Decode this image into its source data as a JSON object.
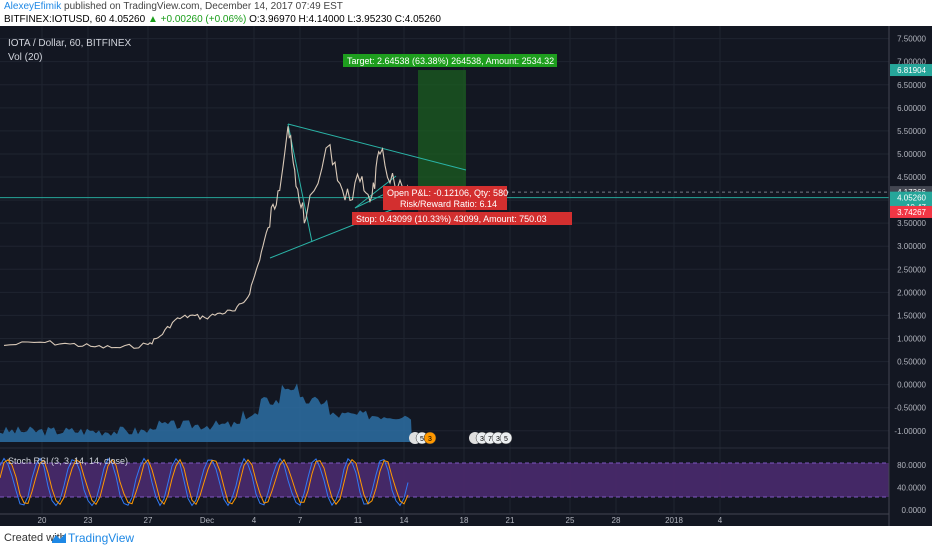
{
  "header": {
    "author": "AlexeyEfimik",
    "published": "published on TradingView.com, December 14, 2017 07:49 EST",
    "symbol": "BITFINEX:IOTUSD, 60",
    "last": "4.05260",
    "change": "+0.00260 (+0.06%)",
    "ohlc": "O:3.96970 H:4.14000 L:3.95230 C:4.05260"
  },
  "legend": {
    "title": "IOTA / Dollar, 60, BITFINEX",
    "volume": "Vol (20)",
    "stoch": "Stoch RSI (3, 3, 14, 14, close)"
  },
  "annotations": {
    "target": "Target: 2.64538 (63.38%) 264538, Amount: 2534.32",
    "open_pl": "Open P&L: -0.12106, Qty: 580",
    "risk_reward": "Risk/Reward Ratio: 6.14",
    "stop": "Stop: 0.43099 (10.33%) 43099, Amount: 750.03"
  },
  "price_tags": [
    {
      "label": "6.81904",
      "value": 6.81904,
      "color": "#26a69a"
    },
    {
      "label": "4.17366",
      "value": 4.17366,
      "color": "#434651"
    },
    {
      "label": "4.05260",
      "value": 4.0526,
      "color": "#26a69a"
    },
    {
      "label": "10.47",
      "value": 3.85,
      "color": "#26a69a"
    },
    {
      "label": "3.74267",
      "value": 3.74267,
      "color": "#f23645"
    }
  ],
  "event_badges": {
    "group1": [
      "5",
      "3"
    ],
    "group2": [
      "3",
      "7",
      "3",
      "5"
    ]
  },
  "chart_data": {
    "type": "line",
    "title": "IOTA / Dollar, 60, BITFINEX",
    "x_tick_labels": [
      "20",
      "23",
      "27",
      "Dec",
      "4",
      "7",
      "11",
      "14",
      "18",
      "21",
      "25",
      "28",
      "2018",
      "4"
    ],
    "y_ticks": [
      "7.50000",
      "7.00000",
      "6.50000",
      "6.00000",
      "5.50000",
      "5.00000",
      "4.50000",
      "4.00000",
      "3.50000",
      "3.00000",
      "2.50000",
      "2.00000",
      "1.50000",
      "1.00000",
      "0.50000",
      "0.00000",
      "-0.50000",
      "-1.00000"
    ],
    "ylim": [
      -1.2,
      7.6
    ],
    "stoch_ticks": [
      "80.0000",
      "40.0000",
      "0.0000"
    ],
    "stoch_ylim": [
      0,
      100
    ],
    "series": [
      {
        "x": [
          "Nov 17",
          "Nov 19",
          "Nov 21",
          "Nov 23",
          "Nov 25",
          "Nov 27",
          "Nov 28",
          "Nov 29",
          "Nov 30",
          "Dec 1",
          "Dec 2",
          "Dec 3",
          "Dec 4",
          "Dec 5",
          "Dec 5 12h",
          "Dec 6",
          "Dec 6 12h",
          "Dec 7",
          "Dec 7 12h",
          "Dec 8",
          "Dec 9",
          "Dec 10",
          "Dec 11",
          "Dec 12",
          "Dec 13",
          "Dec 14"
        ],
        "values": [
          0.85,
          0.92,
          0.88,
          0.82,
          0.8,
          0.87,
          1.05,
          1.4,
          1.5,
          1.45,
          1.55,
          1.6,
          1.9,
          2.6,
          3.4,
          4.2,
          5.6,
          4.3,
          3.6,
          5.2,
          4.0,
          4.4,
          4.1,
          5.0,
          4.3,
          4.05
        ]
      }
    ]
  }
}
